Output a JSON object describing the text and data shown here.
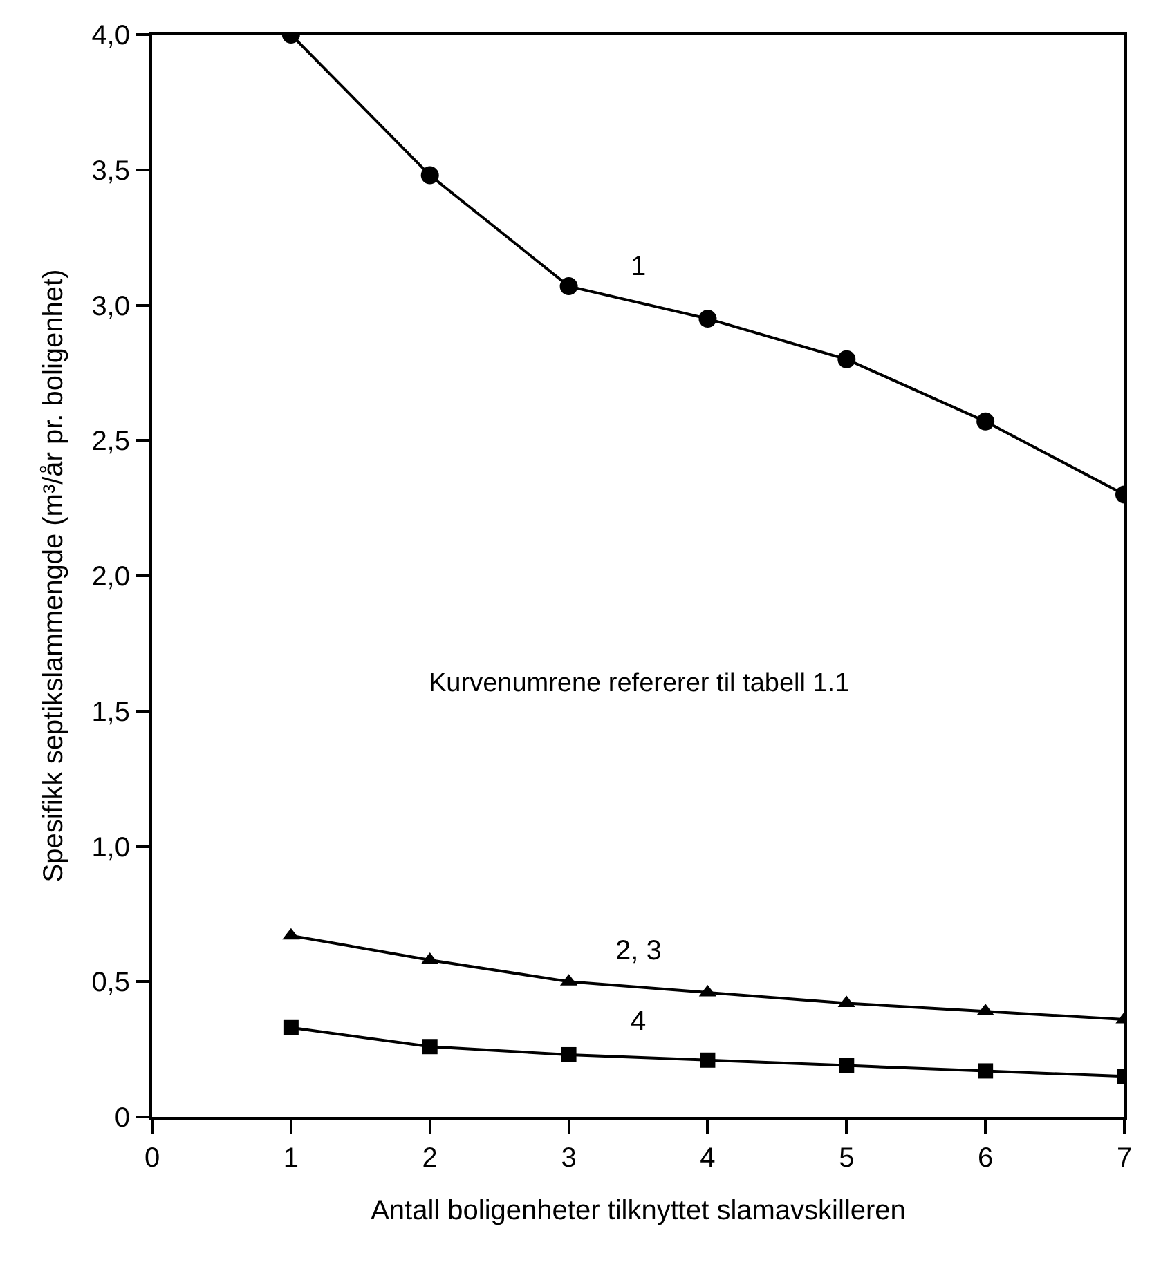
{
  "chart_data": {
    "type": "line",
    "xlabel": "Antall boligenheter tilknyttet slamavskilleren",
    "ylabel": "Spesifikk septikslammengde (m³/år pr. boligenhet)",
    "x": [
      1,
      2,
      3,
      4,
      5,
      6,
      7
    ],
    "series": [
      {
        "name": "1",
        "color": "#000000",
        "marker": "circle",
        "values": [
          4.0,
          3.48,
          3.07,
          2.95,
          2.8,
          2.57,
          2.3
        ]
      },
      {
        "name": "2, 3",
        "color": "#000000",
        "marker": "triangle",
        "values": [
          0.67,
          0.58,
          0.5,
          0.46,
          0.42,
          0.39,
          0.36
        ]
      },
      {
        "name": "4",
        "color": "#000000",
        "marker": "square",
        "values": [
          0.33,
          0.26,
          0.23,
          0.21,
          0.19,
          0.17,
          0.15
        ]
      }
    ],
    "xlim": [
      0,
      7
    ],
    "xticks": [
      0,
      1,
      2,
      3,
      4,
      5,
      6,
      7
    ],
    "ylim": [
      0,
      4.0
    ],
    "yticks": [
      {
        "value": 0,
        "label": "0"
      },
      {
        "value": 0.5,
        "label": "0,5"
      },
      {
        "value": 1.0,
        "label": "1,0"
      },
      {
        "value": 1.5,
        "label": "1,5"
      },
      {
        "value": 2.0,
        "label": "2,0"
      },
      {
        "value": 2.5,
        "label": "2,5"
      },
      {
        "value": 3.0,
        "label": "3,0"
      },
      {
        "value": 3.5,
        "label": "3,5"
      },
      {
        "value": 4.0,
        "label": "4,0"
      }
    ],
    "annotations": [
      "Kurvenumrene refererer til tabell 1.1"
    ],
    "legend": false,
    "line_style": "solid"
  }
}
